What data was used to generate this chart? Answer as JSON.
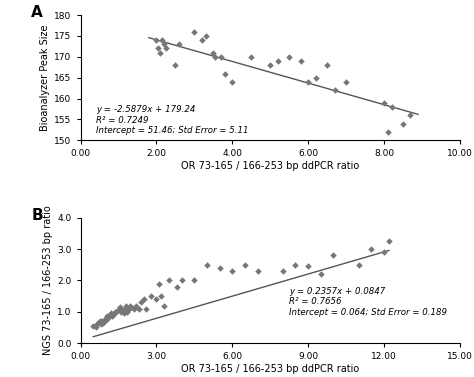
{
  "panel_A": {
    "scatter_x": [
      2.0,
      2.05,
      2.1,
      2.15,
      2.2,
      2.25,
      2.5,
      2.6,
      3.0,
      3.2,
      3.3,
      3.5,
      3.55,
      3.7,
      3.8,
      4.0,
      4.5,
      5.0,
      5.2,
      5.5,
      5.8,
      6.0,
      6.2,
      6.5,
      6.7,
      7.0,
      8.0,
      8.1,
      8.2,
      8.5,
      8.7
    ],
    "scatter_y": [
      174,
      172,
      171,
      174,
      173,
      172,
      168,
      173,
      176,
      174,
      175,
      171,
      170,
      170,
      166,
      164,
      170,
      168,
      169,
      170,
      169,
      164,
      165,
      168,
      162,
      164,
      159,
      152,
      158,
      154,
      156
    ],
    "slope": -2.5879,
    "intercept": 179.24,
    "xlabel": "OR 73-165 / 166-253 bp ddPCR ratio",
    "ylabel": "Bioanalyzer Peak Size",
    "xlim": [
      0,
      10
    ],
    "ylim": [
      150,
      180
    ],
    "xticks": [
      0.0,
      2.0,
      4.0,
      6.0,
      8.0,
      10.0
    ],
    "yticks": [
      150,
      155,
      160,
      165,
      170,
      175,
      180
    ],
    "eq_text": "y = -2.5879x + 179.24",
    "r2_text": "R² = 0.7249",
    "int_text": "Intercept = 51.46; Std Error = 5.11",
    "ann_x": 0.04,
    "ann_y": 0.28,
    "label": "A",
    "line_xmin": 1.8,
    "line_xmax": 8.9
  },
  "panel_B": {
    "scatter_x": [
      0.5,
      0.6,
      0.65,
      0.7,
      0.75,
      0.8,
      0.85,
      0.9,
      0.95,
      1.0,
      1.0,
      1.05,
      1.1,
      1.15,
      1.2,
      1.25,
      1.3,
      1.35,
      1.4,
      1.5,
      1.55,
      1.6,
      1.65,
      1.7,
      1.75,
      1.8,
      1.85,
      1.9,
      1.95,
      2.0,
      2.1,
      2.2,
      2.3,
      2.4,
      2.5,
      2.6,
      2.8,
      3.0,
      3.1,
      3.2,
      3.3,
      3.5,
      3.8,
      4.0,
      4.5,
      5.0,
      5.5,
      6.0,
      6.5,
      7.0,
      8.0,
      8.5,
      9.0,
      9.5,
      10.0,
      11.0,
      11.5,
      12.0,
      12.2
    ],
    "scatter_y": [
      0.55,
      0.5,
      0.6,
      0.65,
      0.7,
      0.6,
      0.7,
      0.65,
      0.75,
      0.75,
      0.8,
      0.85,
      0.8,
      0.9,
      0.95,
      0.85,
      0.9,
      1.0,
      1.0,
      1.1,
      1.15,
      1.0,
      1.05,
      0.95,
      1.1,
      1.2,
      1.0,
      1.1,
      1.2,
      1.15,
      1.1,
      1.2,
      1.1,
      1.3,
      1.4,
      1.1,
      1.5,
      1.4,
      1.9,
      1.5,
      1.2,
      2.0,
      1.8,
      2.0,
      2.0,
      2.5,
      2.4,
      2.3,
      2.5,
      2.3,
      2.3,
      2.5,
      2.45,
      2.2,
      2.8,
      2.5,
      3.0,
      2.9,
      3.25
    ],
    "slope": 0.2357,
    "intercept": 0.0847,
    "xlabel": "OR 73-165 / 166-253 bp ddPCR ratio",
    "ylabel": "NGS 73-165 / 166-253 bp ratio",
    "xlim": [
      0,
      15
    ],
    "ylim": [
      0,
      4.0
    ],
    "xticks": [
      0.0,
      3.0,
      6.0,
      9.0,
      12.0,
      15.0
    ],
    "yticks": [
      0.0,
      1.0,
      2.0,
      3.0,
      4.0
    ],
    "eq_text": "y = 0.2357x + 0.0847",
    "r2_text": "R² = 0.7656",
    "int_text": "Intercept = 0.064; Std Error = 0.189",
    "ann_x": 0.55,
    "ann_y": 0.45,
    "label": "B",
    "line_xmin": 0.5,
    "line_xmax": 12.2
  },
  "marker_color": "#777777",
  "line_color": "#555555",
  "background_color": "#ffffff"
}
